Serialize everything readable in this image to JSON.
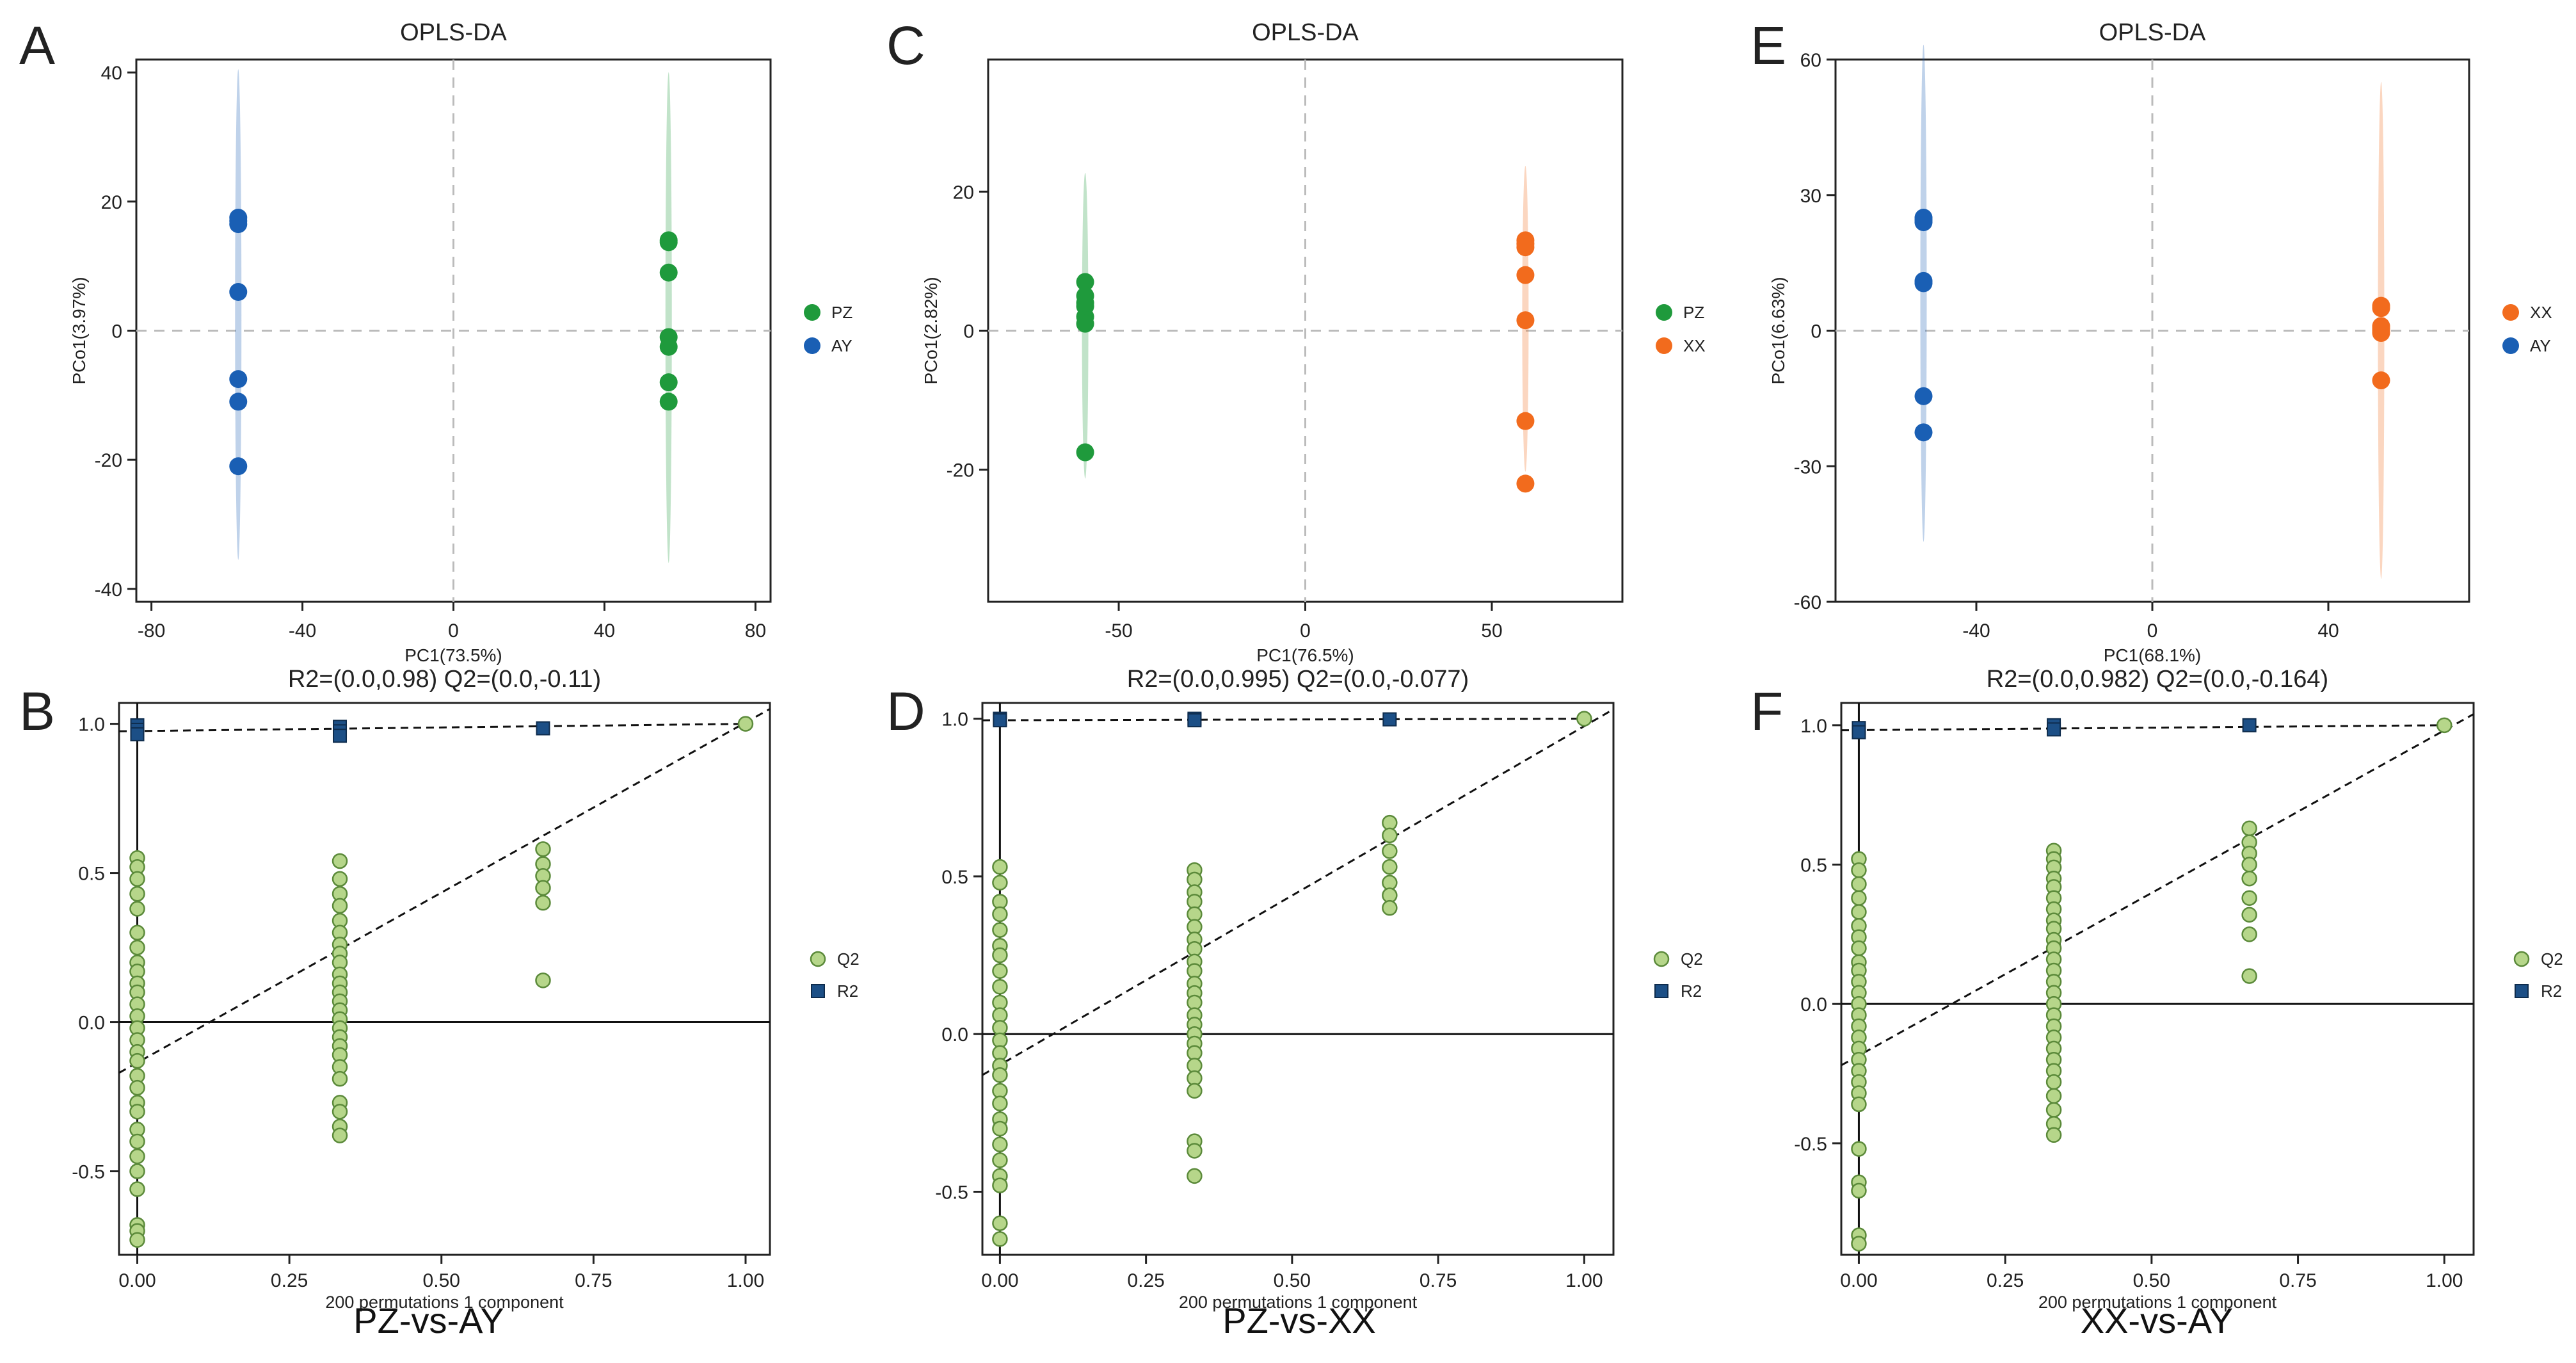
{
  "chart_data": [
    {
      "panel_letter": "A",
      "type": "scatter",
      "title": "OPLS-DA",
      "xlabel": "PC1(73.5%)",
      "ylabel": "PCo1(3.97%)",
      "xlim": [
        -84,
        84
      ],
      "ylim": [
        -42,
        42
      ],
      "xticks": [
        -80,
        -40,
        0,
        40,
        80
      ],
      "yticks": [
        -40,
        -20,
        0,
        20,
        40
      ],
      "ellipse_sigma_y": 38,
      "legend": [
        "PZ",
        "AY"
      ],
      "series": [
        {
          "name": "PZ",
          "color": "#1f9a3c",
          "x": [
            57,
            57,
            57,
            57,
            57,
            57,
            57
          ],
          "y": [
            14,
            9,
            -1,
            -2.5,
            -8,
            -11,
            13.7
          ]
        },
        {
          "name": "AY",
          "color": "#1a5fb4",
          "x": [
            -57,
            -57,
            -57,
            -57,
            -57,
            -57,
            -57
          ],
          "y": [
            17.5,
            16.5,
            6,
            -7.5,
            -11,
            -21,
            17
          ]
        }
      ]
    },
    {
      "panel_letter": "B",
      "type": "scatter",
      "title": "R2=(0.0,0.98)   Q2=(0.0,-0.11)",
      "xlabel": "200 permutations 1 component",
      "ylabel": "",
      "caption": "PZ-vs-AY",
      "xlim": [
        -0.03,
        1.04
      ],
      "ylim": [
        -0.78,
        1.07
      ],
      "xticks": [
        "0.00",
        "0.25",
        "0.50",
        "0.75",
        "1.00"
      ],
      "yticks": [
        "-0.5",
        "0.0",
        "0.5",
        "1.0"
      ],
      "legend": [
        "Q2",
        "R2"
      ],
      "r2_line": [
        [
          -0.03,
          0.975
        ],
        [
          1.0,
          1.0
        ]
      ],
      "q2_line": [
        [
          -0.03,
          -0.17
        ],
        [
          1.04,
          1.05
        ]
      ],
      "q2_points": {
        "0.0": [
          0.55,
          0.52,
          0.48,
          0.43,
          0.38,
          0.3,
          0.25,
          0.2,
          0.17,
          0.13,
          0.1,
          0.06,
          0.02,
          -0.02,
          -0.06,
          -0.1,
          -0.13,
          -0.18,
          -0.22,
          -0.27,
          -0.3,
          -0.36,
          -0.4,
          -0.45,
          -0.5,
          -0.56,
          -0.68,
          -0.7,
          -0.73
        ],
        "0.333": [
          0.54,
          0.48,
          0.43,
          0.39,
          0.34,
          0.3,
          0.26,
          0.23,
          0.2,
          0.16,
          0.13,
          0.1,
          0.07,
          0.04,
          0.01,
          -0.02,
          -0.05,
          -0.08,
          -0.11,
          -0.15,
          -0.19,
          -0.27,
          -0.3,
          -0.35,
          -0.38
        ],
        "0.667": [
          0.58,
          0.53,
          0.49,
          0.45,
          0.4,
          0.14
        ],
        "1.0": [
          1.0
        ]
      },
      "r2_points": {
        "0.0": [
          0.995,
          0.98,
          0.965
        ],
        "0.333": [
          0.99,
          0.975,
          0.96
        ],
        "0.667": [
          0.985
        ],
        "1.0": []
      }
    },
    {
      "panel_letter": "C",
      "type": "scatter",
      "title": "OPLS-DA",
      "xlabel": "PC1(76.5%)",
      "ylabel": "PCo1(2.82%)",
      "xlim": [
        -85,
        85
      ],
      "ylim": [
        -39,
        39
      ],
      "xticks": [
        -50,
        0,
        50
      ],
      "yticks": [
        -20,
        0,
        20
      ],
      "ellipse_sigma_y": 22,
      "legend": [
        "PZ",
        "XX"
      ],
      "series": [
        {
          "name": "PZ",
          "color": "#1f9a3c",
          "x": [
            -59,
            -59,
            -59,
            -59,
            -59,
            -59,
            -59
          ],
          "y": [
            7,
            5,
            3.5,
            2,
            1,
            -17.5,
            4
          ]
        },
        {
          "name": "XX",
          "color": "#f26b1d",
          "x": [
            59,
            59,
            59,
            59,
            59,
            59,
            59
          ],
          "y": [
            13,
            12.5,
            8,
            1.5,
            -13,
            -22,
            12
          ]
        }
      ]
    },
    {
      "panel_letter": "D",
      "type": "scatter",
      "title": "R2=(0.0,0.995)   Q2=(0.0,-0.077)",
      "xlabel": "200 permutations 1 component",
      "ylabel": "",
      "caption": "PZ-vs-XX",
      "xlim": [
        -0.03,
        1.05
      ],
      "ylim": [
        -0.7,
        1.05
      ],
      "xticks": [
        "0.00",
        "0.25",
        "0.50",
        "0.75",
        "1.00"
      ],
      "yticks": [
        "-0.5",
        "0.0",
        "0.5",
        "1.0"
      ],
      "legend": [
        "Q2",
        "R2"
      ],
      "r2_line": [
        [
          -0.03,
          0.995
        ],
        [
          1.0,
          1.0
        ]
      ],
      "q2_line": [
        [
          -0.03,
          -0.13
        ],
        [
          1.05,
          1.03
        ]
      ],
      "q2_points": {
        "0.0": [
          0.53,
          0.48,
          0.42,
          0.38,
          0.33,
          0.28,
          0.25,
          0.2,
          0.15,
          0.1,
          0.06,
          0.02,
          -0.02,
          -0.06,
          -0.1,
          -0.13,
          -0.18,
          -0.22,
          -0.27,
          -0.3,
          -0.35,
          -0.4,
          -0.45,
          -0.48,
          -0.6,
          -0.65
        ],
        "0.333": [
          0.52,
          0.49,
          0.45,
          0.42,
          0.38,
          0.34,
          0.3,
          0.27,
          0.23,
          0.2,
          0.16,
          0.13,
          0.1,
          0.06,
          0.03,
          0.0,
          -0.03,
          -0.06,
          -0.1,
          -0.14,
          -0.18,
          -0.34,
          -0.37,
          -0.45
        ],
        "0.667": [
          0.67,
          0.63,
          0.58,
          0.53,
          0.48,
          0.44,
          0.4
        ],
        "1.0": [
          1.0
        ]
      },
      "r2_points": {
        "0.0": [
          1.0,
          0.995
        ],
        "0.333": [
          1.0,
          0.995
        ],
        "0.667": [
          0.998
        ],
        "1.0": []
      }
    },
    {
      "panel_letter": "E",
      "type": "scatter",
      "title": "OPLS-DA",
      "xlabel": "PC1(68.1%)",
      "ylabel": "PCo1(6.63%)",
      "xlim": [
        -72,
        72
      ],
      "ylim": [
        -60,
        60
      ],
      "xticks": [
        -40,
        0,
        40
      ],
      "yticks": [
        -60,
        -30,
        0,
        30,
        60
      ],
      "ellipse_sigma_y": 55,
      "legend": [
        "XX",
        "AY"
      ],
      "series": [
        {
          "name": "XX",
          "color": "#f26b1d",
          "x": [
            52,
            52,
            52,
            52,
            52,
            52,
            52
          ],
          "y": [
            5.5,
            1,
            0,
            -0.5,
            -11,
            5,
            0.5
          ]
        },
        {
          "name": "AY",
          "color": "#1a5fb4",
          "x": [
            -52,
            -52,
            -52,
            -52,
            -52,
            -52,
            -52
          ],
          "y": [
            25,
            24,
            11,
            -14.5,
            -22.5,
            24.5,
            10.5
          ]
        }
      ]
    },
    {
      "panel_letter": "F",
      "type": "scatter",
      "title": "R2=(0.0,0.982)   Q2=(0.0,-0.164)",
      "xlabel": "200 permutations 1 component",
      "ylabel": "",
      "caption": "XX-vs-AY",
      "xlim": [
        -0.03,
        1.05
      ],
      "ylim": [
        -0.9,
        1.08
      ],
      "xticks": [
        "0.00",
        "0.25",
        "0.50",
        "0.75",
        "1.00"
      ],
      "yticks": [
        "-0.5",
        "0.0",
        "0.5",
        "1.0"
      ],
      "legend": [
        "Q2",
        "R2"
      ],
      "r2_line": [
        [
          -0.03,
          0.982
        ],
        [
          1.0,
          1.0
        ]
      ],
      "q2_line": [
        [
          -0.03,
          -0.22
        ],
        [
          1.05,
          1.04
        ]
      ],
      "q2_points": {
        "0.0": [
          0.52,
          0.48,
          0.43,
          0.38,
          0.33,
          0.28,
          0.24,
          0.2,
          0.15,
          0.12,
          0.08,
          0.04,
          0.0,
          -0.04,
          -0.08,
          -0.12,
          -0.16,
          -0.2,
          -0.24,
          -0.28,
          -0.32,
          -0.36,
          -0.52,
          -0.64,
          -0.67,
          -0.83,
          -0.86
        ],
        "0.333": [
          0.55,
          0.52,
          0.49,
          0.45,
          0.42,
          0.38,
          0.34,
          0.3,
          0.27,
          0.23,
          0.2,
          0.16,
          0.12,
          0.08,
          0.04,
          0.0,
          -0.04,
          -0.08,
          -0.12,
          -0.16,
          -0.2,
          -0.24,
          -0.28,
          -0.33,
          -0.38,
          -0.43,
          -0.47
        ],
        "0.667": [
          0.63,
          0.58,
          0.54,
          0.5,
          0.45,
          0.38,
          0.32,
          0.25,
          0.1
        ],
        "1.0": [
          1.0
        ]
      },
      "r2_points": {
        "0.0": [
          0.99,
          0.975
        ],
        "0.333": [
          1.0,
          0.985
        ],
        "0.667": [
          1.0
        ],
        "1.0": []
      }
    }
  ]
}
